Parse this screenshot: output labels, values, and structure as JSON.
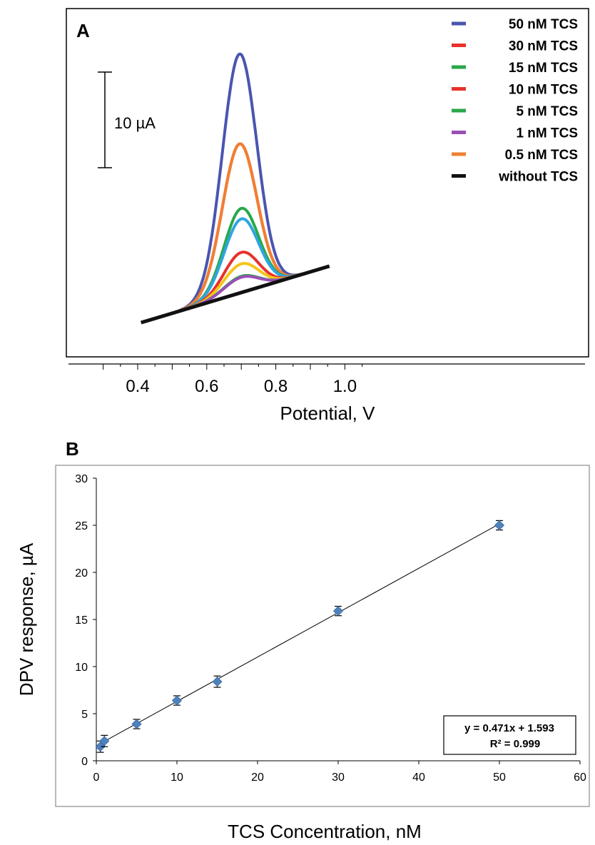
{
  "chart_data": [
    {
      "panel_label": "A",
      "type": "line",
      "xlabel": "Potential, V",
      "ylabel": "",
      "x_ticks": [
        "0.4",
        "0.6",
        "0.8",
        "1.0"
      ],
      "xlim": [
        0.3,
        1.05
      ],
      "ylim": [
        -10,
        40
      ],
      "scale_bar": {
        "label": "10 µA",
        "value": 10
      },
      "legend_position": "top-right",
      "grid": false,
      "series": [
        {
          "name": "50 nM TCS",
          "color": "#4a55b0",
          "peak_potential": 0.695,
          "peak_height": 25.0
        },
        {
          "name": "30 nM TCS",
          "color": "#e8312b",
          "peak_potential": 0.695,
          "peak_height": 15.6
        },
        {
          "name": "15 nM TCS",
          "color": "#2aa84a",
          "peak_potential": 0.7,
          "peak_height": 8.8
        },
        {
          "name": "10 nM TCS",
          "color": "#e8312b",
          "peak_potential": 0.7,
          "peak_height": 4.2
        },
        {
          "name": "5 nM TCS",
          "color": "#2aa84a",
          "peak_potential": 0.7,
          "peak_height": 1.7
        },
        {
          "name": "1 nM TCS",
          "color": "#9a4fb5",
          "peak_potential": 0.7,
          "peak_height": 1.6
        },
        {
          "name": "0.5 nM TCS",
          "color": "#f07f32",
          "peak_potential": 0.695,
          "peak_height": 15.6
        },
        {
          "name": "without TCS",
          "color": "#111111",
          "peak_potential": null,
          "peak_height": 0
        }
      ],
      "extra_traces": [
        {
          "color": "#2fa5e0",
          "peak_potential": 0.7,
          "peak_height": 7.7
        },
        {
          "color": "#f5c518",
          "peak_potential": 0.7,
          "peak_height": 3.0
        }
      ],
      "baseline": {
        "x_start": 0.41,
        "x_end": 0.955,
        "y_start": 0,
        "y_end": 5.9
      }
    },
    {
      "panel_label": "B",
      "type": "scatter",
      "xlabel": "TCS Concentration, nM",
      "ylabel": "DPV response, µA",
      "xlim": [
        0,
        60
      ],
      "ylim": [
        0,
        30
      ],
      "x_ticks": [
        0,
        10,
        20,
        30,
        40,
        50,
        60
      ],
      "y_ticks": [
        0,
        5,
        10,
        15,
        20,
        25,
        30
      ],
      "grid": false,
      "points": [
        {
          "x": 0.5,
          "y": 1.5,
          "err": 0.6
        },
        {
          "x": 1,
          "y": 2.1,
          "err": 0.6
        },
        {
          "x": 5,
          "y": 3.9,
          "err": 0.5
        },
        {
          "x": 10,
          "y": 6.4,
          "err": 0.5
        },
        {
          "x": 15,
          "y": 8.4,
          "err": 0.6
        },
        {
          "x": 30,
          "y": 15.9,
          "err": 0.5
        },
        {
          "x": 50,
          "y": 25.0,
          "err": 0.5
        }
      ],
      "fit": {
        "slope": 0.471,
        "intercept": 1.593,
        "x_from": 0,
        "x_to": 50
      },
      "equation_text": "y = 0.471x + 1.593",
      "r2_text": "R² = 0.999",
      "marker_color": "#4f81bd"
    }
  ]
}
